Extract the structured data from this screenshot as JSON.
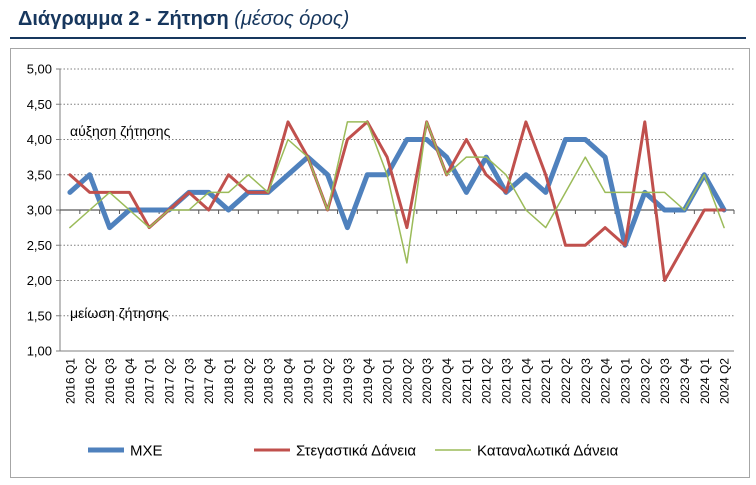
{
  "title": {
    "main": "Διάγραμμα 2 - Ζήτηση",
    "sub": "(μέσος όρος)"
  },
  "chart_data": {
    "type": "line",
    "title": "Διάγραμμα 2 - Ζήτηση (μέσος όρος)",
    "ylim": [
      1.0,
      5.0
    ],
    "ytick_labels": [
      "1,00",
      "1,50",
      "2,00",
      "2,50",
      "3,00",
      "3,50",
      "4,00",
      "4,50",
      "5,00"
    ],
    "grid": true,
    "legend": "bottom",
    "annotations": {
      "increase": "αύξηση ζήτησης",
      "decrease": "μείωση ζήτησης"
    },
    "categories": [
      "2016 Q1",
      "2016 Q2",
      "2016 Q3",
      "2016 Q4",
      "2017 Q1",
      "2017 Q2",
      "2017 Q3",
      "2017 Q4",
      "2018 Q1",
      "2018 Q2",
      "2018 Q3",
      "2018 Q4",
      "2019 Q1",
      "2019 Q2",
      "2019 Q3",
      "2019 Q4",
      "2020 Q1",
      "2020 Q2",
      "2020 Q3",
      "2020 Q4",
      "2021 Q1",
      "2021 Q2",
      "2021 Q3",
      "2021 Q4",
      "2022 Q1",
      "2022 Q2",
      "2022 Q3",
      "2022 Q4",
      "2023 Q1",
      "2023 Q2",
      "2023 Q3",
      "2023 Q4",
      "2024 Q1",
      "2024 Q2"
    ],
    "series": [
      {
        "name": "ΜΧΕ",
        "color": "#4f81bd",
        "values": [
          3.25,
          3.5,
          2.75,
          3.0,
          3.0,
          3.0,
          3.25,
          3.25,
          3.0,
          3.25,
          3.25,
          3.5,
          3.75,
          3.5,
          2.75,
          3.5,
          3.5,
          4.0,
          4.0,
          3.75,
          3.25,
          3.75,
          3.25,
          3.5,
          3.25,
          4.0,
          4.0,
          3.75,
          2.5,
          3.25,
          3.0,
          3.0,
          3.5,
          3.0
        ]
      },
      {
        "name": "Στεγαστικά Δάνεια",
        "color": "#c0504d",
        "values": [
          3.5,
          3.25,
          3.25,
          3.25,
          2.75,
          3.0,
          3.25,
          3.0,
          3.5,
          3.25,
          3.25,
          4.25,
          3.75,
          3.0,
          4.0,
          4.25,
          3.75,
          2.75,
          4.25,
          3.5,
          4.0,
          3.5,
          3.25,
          4.25,
          3.5,
          2.5,
          2.5,
          2.75,
          2.5,
          4.25,
          2.0,
          2.5,
          3.0,
          3.0
        ]
      },
      {
        "name": "Καταναλωτικά Δάνεια",
        "color": "#9bbb59",
        "values": [
          2.75,
          3.0,
          3.25,
          3.0,
          2.75,
          3.0,
          3.0,
          3.25,
          3.25,
          3.5,
          3.25,
          4.0,
          3.75,
          3.0,
          4.25,
          4.25,
          3.5,
          2.25,
          4.25,
          3.5,
          3.75,
          3.75,
          3.5,
          3.0,
          2.75,
          3.25,
          3.75,
          3.25,
          3.25,
          3.25,
          3.25,
          3.0,
          3.5,
          2.75
        ]
      }
    ]
  }
}
